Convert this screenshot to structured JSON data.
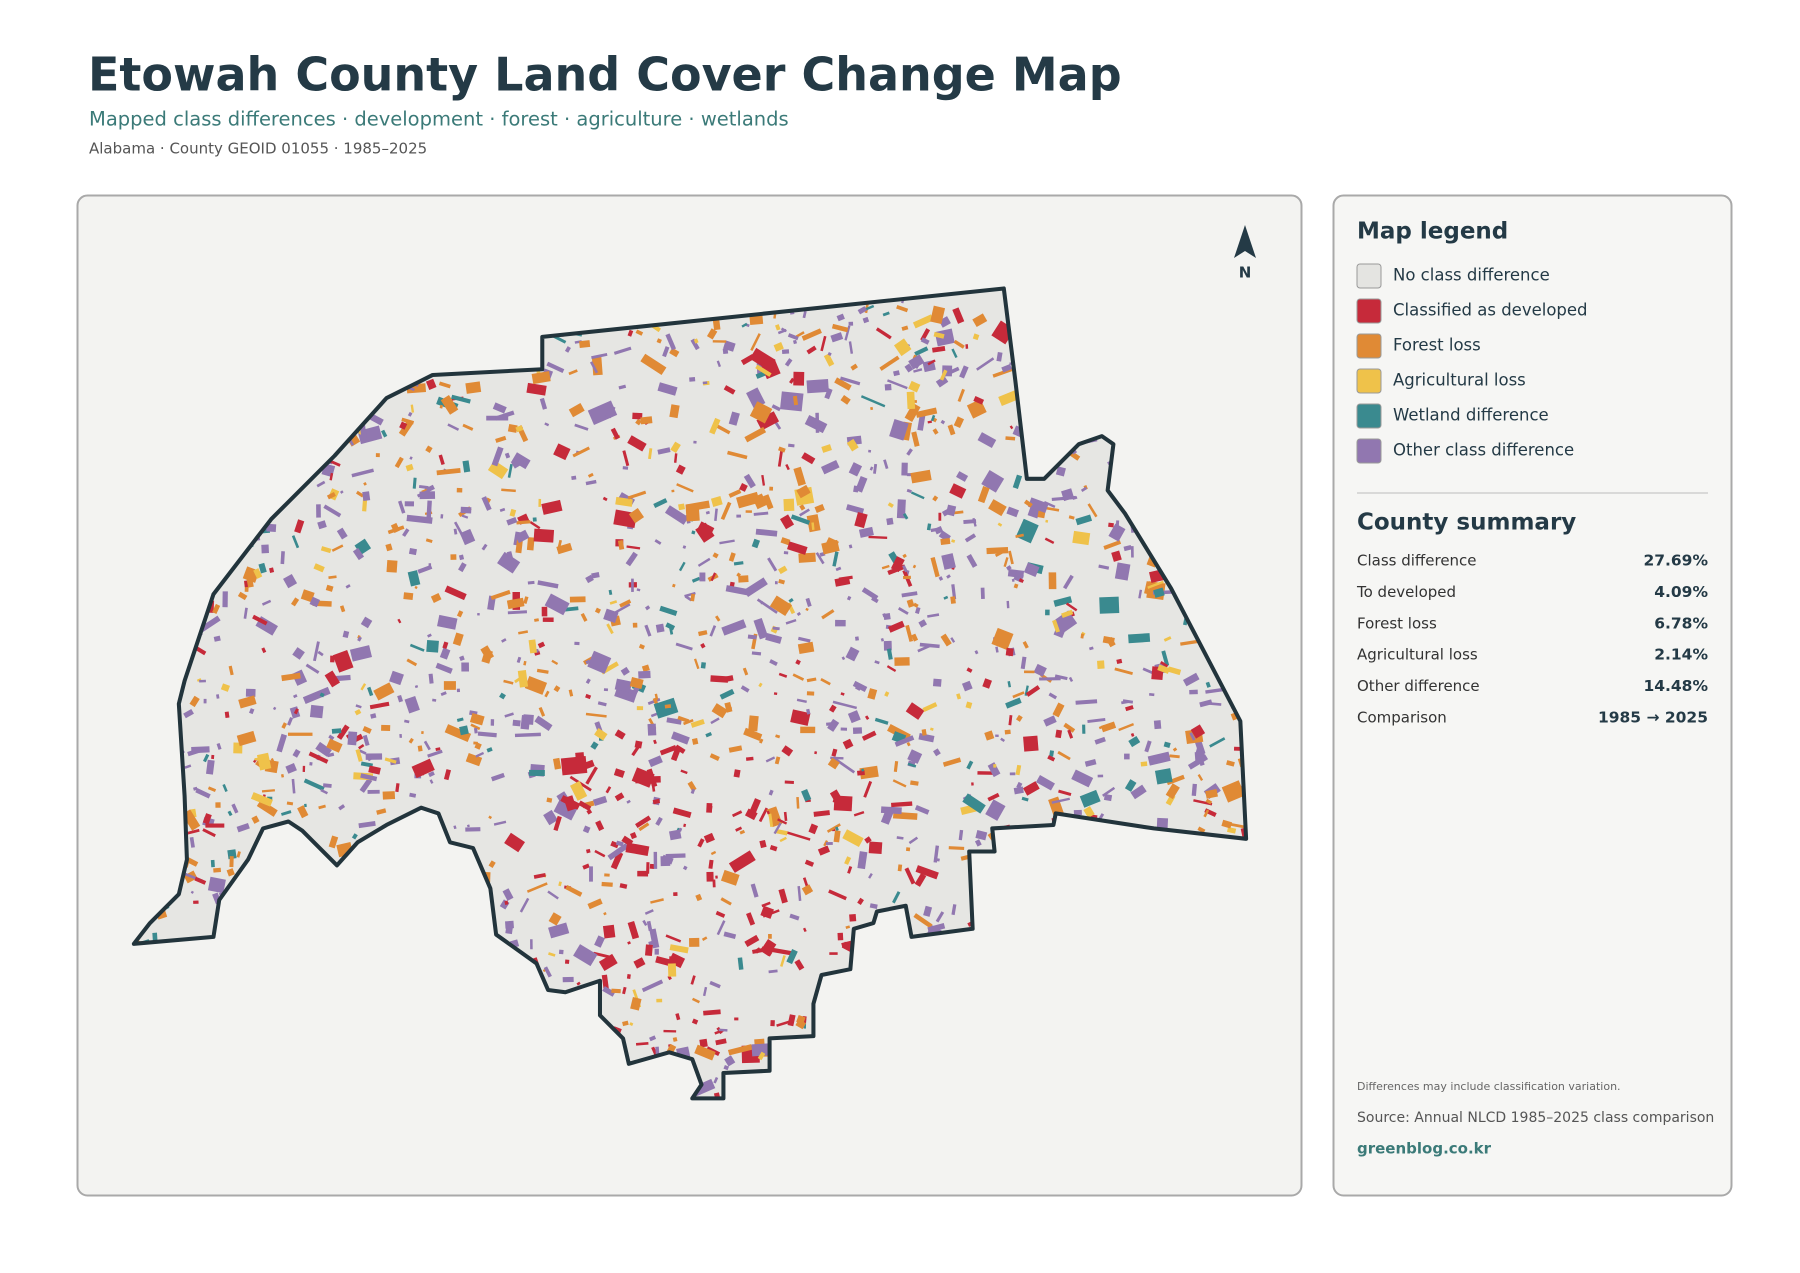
{
  "header": {
    "title": "Etowah County Land Cover Change Map",
    "subtitle": "Mapped class differences · development · forest · agriculture · wetlands",
    "meta": "Alabama · County GEOID 01055 · 1985–2025"
  },
  "map": {
    "north": "N"
  },
  "legend": {
    "title": "Map legend",
    "items": [
      {
        "label": "No class difference",
        "color": "#e4e4e1"
      },
      {
        "label": "Classified as developed",
        "color": "#c62a3a"
      },
      {
        "label": "Forest loss",
        "color": "#e08a35"
      },
      {
        "label": "Agricultural loss",
        "color": "#efc24a"
      },
      {
        "label": "Wetland difference",
        "color": "#3a8a8f"
      },
      {
        "label": "Other class difference",
        "color": "#9177b0"
      }
    ]
  },
  "summary": {
    "title": "County summary",
    "rows": [
      [
        "Class difference",
        "27.69%"
      ],
      [
        "To developed",
        "4.09%"
      ],
      [
        "Forest loss",
        "6.78%"
      ],
      [
        "Agricultural loss",
        "2.14%"
      ],
      [
        "Other difference",
        "14.48%"
      ],
      [
        "Comparison",
        "1985 → 2025"
      ]
    ]
  },
  "footer": {
    "note": "Differences may include classification variation.",
    "source": "Source: Annual NLCD 1985–2025 class comparison",
    "credit": "greenblog.co.kr"
  }
}
